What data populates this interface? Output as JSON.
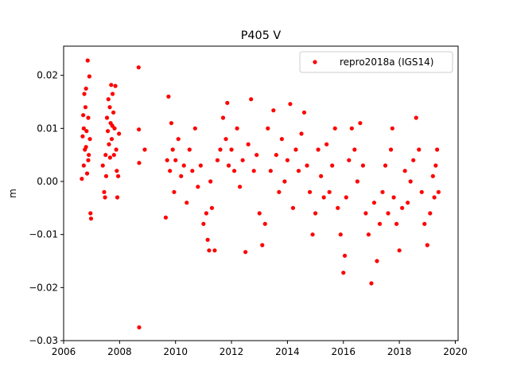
{
  "chart_data": {
    "type": "scatter",
    "title": "P405 V",
    "xlabel": "",
    "ylabel": "m",
    "xlim": [
      2006.0,
      2020.1
    ],
    "ylim": [
      -0.03,
      0.0255
    ],
    "x_ticks": [
      2006,
      2008,
      2010,
      2012,
      2014,
      2016,
      2018,
      2020
    ],
    "x_tick_labels": [
      "2006",
      "2008",
      "2010",
      "2012",
      "2014",
      "2016",
      "2018",
      "2020"
    ],
    "y_ticks": [
      -0.03,
      -0.02,
      -0.01,
      0.0,
      0.01,
      0.02
    ],
    "y_tick_labels": [
      "−0.03",
      "−0.02",
      "−0.01",
      "0.00",
      "0.01",
      "0.02"
    ],
    "grid": false,
    "legend_position": "top-right",
    "series": [
      {
        "name": "repro2018a (IGS14)",
        "color": "#ff0000",
        "marker": "circle",
        "points": [
          [
            2006.65,
            0.0005
          ],
          [
            2006.68,
            0.0085
          ],
          [
            2006.7,
            0.0125
          ],
          [
            2006.72,
            0.01
          ],
          [
            2006.74,
            0.0165
          ],
          [
            2006.76,
            0.006
          ],
          [
            2006.78,
            0.014
          ],
          [
            2006.8,
            0.0175
          ],
          [
            2006.82,
            0.0095
          ],
          [
            2006.84,
            0.0015
          ],
          [
            2006.86,
            0.0228
          ],
          [
            2006.88,
            0.012
          ],
          [
            2006.9,
            0.005
          ],
          [
            2006.92,
            0.0198
          ],
          [
            2006.94,
            0.008
          ],
          [
            2006.96,
            -0.006
          ],
          [
            2006.98,
            -0.007
          ],
          [
            2006.72,
            0.003
          ],
          [
            2006.8,
            0.0065
          ],
          [
            2006.88,
            0.004
          ],
          [
            2007.4,
            0.003
          ],
          [
            2007.45,
            -0.002
          ],
          [
            2007.5,
            0.005
          ],
          [
            2007.55,
            0.012
          ],
          [
            2007.58,
            0.0095
          ],
          [
            2007.6,
            0.0155
          ],
          [
            2007.62,
            0.007
          ],
          [
            2007.65,
            0.014
          ],
          [
            2007.68,
            0.011
          ],
          [
            2007.7,
            0.0182
          ],
          [
            2007.72,
            0.008
          ],
          [
            2007.75,
            0.0165
          ],
          [
            2007.78,
            0.013
          ],
          [
            2007.8,
            0.005
          ],
          [
            2007.82,
            0.01
          ],
          [
            2007.85,
            0.018
          ],
          [
            2007.88,
            0.006
          ],
          [
            2007.9,
            0.002
          ],
          [
            2007.92,
            -0.003
          ],
          [
            2007.95,
            0.001
          ],
          [
            2007.98,
            0.009
          ],
          [
            2007.48,
            -0.003
          ],
          [
            2007.52,
            0.001
          ],
          [
            2007.66,
            0.0045
          ],
          [
            2007.74,
            0.0105
          ],
          [
            2008.68,
            0.0215
          ],
          [
            2008.69,
            0.0098
          ],
          [
            2008.7,
            0.0035
          ],
          [
            2008.7,
            -0.0275
          ],
          [
            2008.9,
            0.006
          ],
          [
            2009.65,
            -0.0068
          ],
          [
            2009.7,
            0.004
          ],
          [
            2009.75,
            0.016
          ],
          [
            2009.8,
            0.002
          ],
          [
            2009.85,
            0.011
          ],
          [
            2009.9,
            0.006
          ],
          [
            2009.95,
            -0.002
          ],
          [
            2010.0,
            0.004
          ],
          [
            2010.1,
            0.008
          ],
          [
            2010.2,
            0.001
          ],
          [
            2010.3,
            0.003
          ],
          [
            2010.4,
            -0.004
          ],
          [
            2010.5,
            0.006
          ],
          [
            2010.6,
            0.002
          ],
          [
            2010.7,
            0.01
          ],
          [
            2010.8,
            -0.001
          ],
          [
            2010.9,
            0.003
          ],
          [
            2011.0,
            -0.008
          ],
          [
            2011.1,
            -0.006
          ],
          [
            2011.15,
            -0.011
          ],
          [
            2011.2,
            -0.013
          ],
          [
            2011.25,
            0.0
          ],
          [
            2011.3,
            -0.005
          ],
          [
            2011.4,
            -0.013
          ],
          [
            2011.5,
            0.004
          ],
          [
            2011.6,
            0.006
          ],
          [
            2011.7,
            0.012
          ],
          [
            2011.8,
            0.008
          ],
          [
            2011.85,
            0.0148
          ],
          [
            2011.9,
            0.003
          ],
          [
            2012.0,
            0.006
          ],
          [
            2012.1,
            0.002
          ],
          [
            2012.2,
            0.01
          ],
          [
            2012.3,
            -0.001
          ],
          [
            2012.4,
            0.004
          ],
          [
            2012.5,
            -0.0133
          ],
          [
            2012.6,
            0.007
          ],
          [
            2012.7,
            0.0155
          ],
          [
            2012.8,
            0.002
          ],
          [
            2012.9,
            0.005
          ],
          [
            2013.0,
            -0.006
          ],
          [
            2013.1,
            -0.012
          ],
          [
            2013.2,
            -0.008
          ],
          [
            2013.3,
            0.01
          ],
          [
            2013.4,
            0.002
          ],
          [
            2013.5,
            0.0134
          ],
          [
            2013.6,
            0.005
          ],
          [
            2013.7,
            -0.002
          ],
          [
            2013.8,
            0.008
          ],
          [
            2013.9,
            0.0
          ],
          [
            2014.0,
            0.004
          ],
          [
            2014.1,
            0.0146
          ],
          [
            2014.2,
            -0.005
          ],
          [
            2014.3,
            0.006
          ],
          [
            2014.4,
            0.002
          ],
          [
            2014.5,
            0.009
          ],
          [
            2014.6,
            0.013
          ],
          [
            2014.7,
            0.003
          ],
          [
            2014.8,
            -0.002
          ],
          [
            2014.9,
            -0.01
          ],
          [
            2015.0,
            -0.006
          ],
          [
            2015.1,
            0.006
          ],
          [
            2015.2,
            0.001
          ],
          [
            2015.3,
            -0.003
          ],
          [
            2015.4,
            0.007
          ],
          [
            2015.5,
            -0.002
          ],
          [
            2015.6,
            0.003
          ],
          [
            2015.7,
            0.01
          ],
          [
            2015.8,
            -0.005
          ],
          [
            2015.9,
            -0.01
          ],
          [
            2016.0,
            -0.0172
          ],
          [
            2016.05,
            -0.014
          ],
          [
            2016.1,
            -0.003
          ],
          [
            2016.2,
            0.004
          ],
          [
            2016.3,
            0.01
          ],
          [
            2016.4,
            0.006
          ],
          [
            2016.5,
            0.0
          ],
          [
            2016.6,
            0.011
          ],
          [
            2016.7,
            0.003
          ],
          [
            2016.8,
            -0.006
          ],
          [
            2016.9,
            -0.01
          ],
          [
            2017.0,
            -0.0192
          ],
          [
            2017.1,
            -0.004
          ],
          [
            2017.2,
            -0.015
          ],
          [
            2017.3,
            -0.008
          ],
          [
            2017.4,
            -0.002
          ],
          [
            2017.5,
            0.003
          ],
          [
            2017.6,
            -0.006
          ],
          [
            2017.7,
            0.006
          ],
          [
            2017.75,
            0.01
          ],
          [
            2017.8,
            -0.003
          ],
          [
            2017.9,
            -0.008
          ],
          [
            2018.0,
            -0.013
          ],
          [
            2018.1,
            -0.005
          ],
          [
            2018.2,
            0.002
          ],
          [
            2018.3,
            -0.004
          ],
          [
            2018.4,
            0.0
          ],
          [
            2018.5,
            0.004
          ],
          [
            2018.6,
            0.012
          ],
          [
            2018.7,
            0.006
          ],
          [
            2018.8,
            -0.002
          ],
          [
            2018.9,
            -0.008
          ],
          [
            2019.0,
            -0.012
          ],
          [
            2019.1,
            -0.006
          ],
          [
            2019.2,
            0.001
          ],
          [
            2019.25,
            -0.003
          ],
          [
            2019.3,
            0.003
          ],
          [
            2019.35,
            0.006
          ],
          [
            2019.4,
            -0.002
          ]
        ]
      }
    ]
  }
}
